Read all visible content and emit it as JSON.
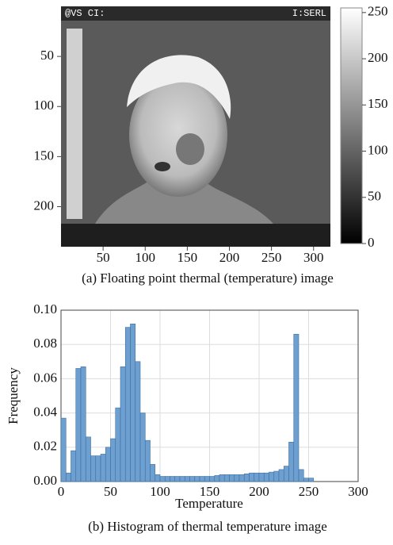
{
  "chart_data": [
    {
      "type": "image",
      "caption": "(a) Floating point thermal (temperature) image",
      "overlay_texts": [
        "@VS CI:",
        "I:SERL"
      ],
      "xlim": [
        0,
        320
      ],
      "ylim": [
        0,
        240
      ],
      "xticks": [
        50,
        100,
        150,
        200,
        250,
        300
      ],
      "yticks": [
        50,
        100,
        150,
        200
      ],
      "colorbar_lim": [
        0,
        255
      ],
      "colorbar_ticks": [
        0,
        50,
        100,
        150,
        200,
        250
      ]
    },
    {
      "type": "histogram",
      "caption": "(b) Histogram of thermal temperature image",
      "x_label": "Temperature",
      "y_label": "Frequency",
      "color": "#6d9fd0",
      "grid": true,
      "bins": [
        0,
        5,
        10,
        15,
        20,
        25,
        30,
        35,
        40,
        45,
        50,
        55,
        60,
        65,
        70,
        75,
        80,
        85,
        90,
        95,
        100,
        105,
        110,
        115,
        120,
        125,
        130,
        135,
        140,
        145,
        150,
        155,
        160,
        165,
        170,
        175,
        180,
        185,
        190,
        195,
        200,
        205,
        210,
        215,
        220,
        225,
        230,
        235,
        240,
        245,
        250,
        255
      ],
      "values": [
        0.037,
        0.005,
        0.018,
        0.066,
        0.067,
        0.026,
        0.015,
        0.015,
        0.016,
        0.02,
        0.025,
        0.043,
        0.067,
        0.09,
        0.092,
        0.07,
        0.04,
        0.024,
        0.01,
        0.004,
        0.003,
        0.003,
        0.003,
        0.003,
        0.003,
        0.003,
        0.003,
        0.003,
        0.003,
        0.003,
        0.003,
        0.0035,
        0.004,
        0.004,
        0.004,
        0.004,
        0.004,
        0.0045,
        0.005,
        0.005,
        0.005,
        0.005,
        0.0055,
        0.006,
        0.007,
        0.009,
        0.023,
        0.086,
        0.007,
        0.002,
        0.002
      ],
      "xlim": [
        0,
        300
      ],
      "ylim": [
        0,
        0.1
      ],
      "xticks": [
        0,
        50,
        100,
        150,
        200,
        250,
        300
      ],
      "yticks": [
        {
          "value": 0,
          "label": "0.00"
        },
        {
          "value": 0.02,
          "label": "0.02"
        },
        {
          "value": 0.04,
          "label": "0.04"
        },
        {
          "value": 0.06,
          "label": "0.06"
        },
        {
          "value": 0.08,
          "label": "0.08"
        },
        {
          "value": 0.1,
          "label": "0.10"
        }
      ]
    }
  ]
}
